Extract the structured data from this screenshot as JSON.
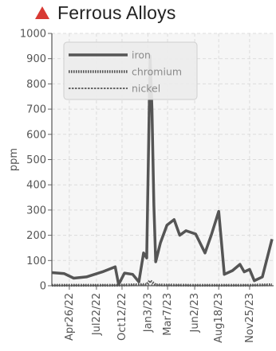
{
  "header": {
    "title": "Ferrous Alloys",
    "icon": "warning-triangle-icon",
    "icon_color": "#d83a34"
  },
  "chart_data": {
    "type": "line",
    "title": "Ferrous Alloys",
    "ylabel": "ppm",
    "xlabel": "",
    "ylim": [
      0,
      1000
    ],
    "yticks": [
      0,
      100,
      200,
      300,
      400,
      500,
      600,
      700,
      800,
      900,
      1000
    ],
    "x_range": [
      "2022-03-01",
      "2024-02-10"
    ],
    "xtick_labels": [
      "Apr26/22",
      "Jul22/22",
      "Oct12/22",
      "Jan3/23",
      "Mar7/23",
      "Jun2/23",
      "Aug18/23",
      "Nov25/23"
    ],
    "xtick_dates": [
      "2022-04-26",
      "2022-07-22",
      "2022-10-12",
      "2023-01-03",
      "2023-03-07",
      "2023-06-02",
      "2023-08-18",
      "2023-11-25"
    ],
    "grid": true,
    "legend_position": "top-left",
    "series": [
      {
        "name": "iron",
        "color": "#555555",
        "style": "solid",
        "points": [
          [
            "2022-03-01",
            52
          ],
          [
            "2022-04-10",
            48
          ],
          [
            "2022-05-10",
            30
          ],
          [
            "2022-06-20",
            35
          ],
          [
            "2022-08-10",
            55
          ],
          [
            "2022-09-20",
            75
          ],
          [
            "2022-10-01",
            5
          ],
          [
            "2022-10-20",
            50
          ],
          [
            "2022-11-15",
            45
          ],
          [
            "2022-12-05",
            15
          ],
          [
            "2022-12-20",
            130
          ],
          [
            "2022-12-30",
            110
          ],
          [
            "2023-01-10",
            910
          ],
          [
            "2023-01-16",
            700
          ],
          [
            "2023-01-22",
            320
          ],
          [
            "2023-01-28",
            95
          ],
          [
            "2023-02-12",
            170
          ],
          [
            "2023-03-05",
            240
          ],
          [
            "2023-03-28",
            262
          ],
          [
            "2023-04-15",
            200
          ],
          [
            "2023-05-05",
            218
          ],
          [
            "2023-06-05",
            205
          ],
          [
            "2023-07-05",
            130
          ],
          [
            "2023-07-25",
            200
          ],
          [
            "2023-08-18",
            295
          ],
          [
            "2023-09-05",
            45
          ],
          [
            "2023-10-01",
            60
          ],
          [
            "2023-10-25",
            85
          ],
          [
            "2023-11-08",
            55
          ],
          [
            "2023-11-25",
            65
          ],
          [
            "2023-12-10",
            20
          ],
          [
            "2024-01-05",
            35
          ],
          [
            "2024-02-05",
            185
          ]
        ]
      },
      {
        "name": "chromium",
        "color": "#555555",
        "style": "dotted",
        "points": [
          [
            "2022-03-01",
            2
          ],
          [
            "2022-09-20",
            2
          ],
          [
            "2022-12-30",
            5
          ],
          [
            "2023-01-10",
            20
          ],
          [
            "2023-01-28",
            3
          ],
          [
            "2023-06-05",
            2
          ],
          [
            "2023-11-25",
            2
          ],
          [
            "2024-02-05",
            4
          ]
        ]
      },
      {
        "name": "nickel",
        "color": "#666666",
        "style": "dashed",
        "points": [
          [
            "2022-03-01",
            1
          ],
          [
            "2023-01-10",
            2
          ],
          [
            "2023-08-18",
            1
          ],
          [
            "2024-02-05",
            2
          ]
        ]
      }
    ]
  }
}
